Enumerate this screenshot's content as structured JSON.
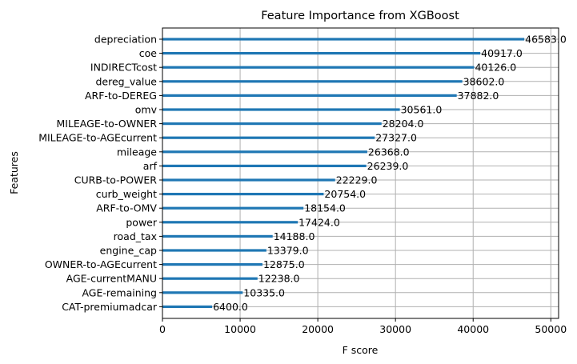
{
  "chart_data": {
    "type": "bar",
    "orientation": "horizontal",
    "title": "Feature Importance from XGBoost",
    "xlabel": "F score",
    "ylabel": "Features",
    "xlim": [
      0,
      51000
    ],
    "xticks": [
      0,
      10000,
      20000,
      30000,
      40000,
      50000
    ],
    "xtick_labels": [
      "0",
      "10000",
      "20000",
      "30000",
      "40000",
      "50000"
    ],
    "grid": true,
    "colors": {
      "bar": "#1f77b4",
      "grid": "#b0b0b0",
      "axis": "#000000"
    },
    "categories": [
      "depreciation",
      "coe",
      "INDIRECTcost",
      "dereg_value",
      "ARF-to-DEREG",
      "omv",
      "MILEAGE-to-OWNER",
      "MILEAGE-to-AGEcurrent",
      "mileage",
      "arf",
      "CURB-to-POWER",
      "curb_weight",
      "ARF-to-OMV",
      "power",
      "road_tax",
      "engine_cap",
      "OWNER-to-AGEcurrent",
      "AGE-currentMANU",
      "AGE-remaining",
      "CAT-premiumadcar"
    ],
    "values": [
      46583,
      40917,
      40126,
      38602,
      37882,
      30561,
      28204,
      27327,
      26368,
      26239,
      22229,
      20754,
      18154,
      17424,
      14188,
      13379,
      12875,
      12238,
      10335,
      6400
    ],
    "data_labels": [
      "46583.0",
      "40917.0",
      "40126.0",
      "38602.0",
      "37882.0",
      "30561.0",
      "28204.0",
      "27327.0",
      "26368.0",
      "26239.0",
      "22229.0",
      "20754.0",
      "18154.0",
      "17424.0",
      "14188.0",
      "13379.0",
      "12875.0",
      "12238.0",
      "10335.0",
      "6400.0"
    ]
  }
}
